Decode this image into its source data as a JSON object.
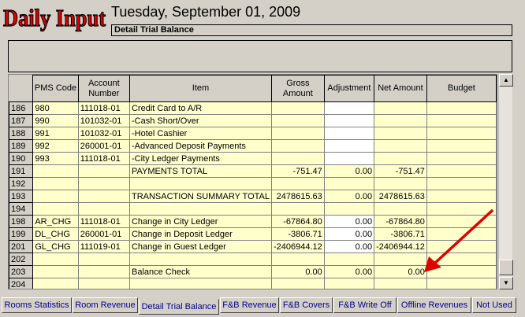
{
  "header": {
    "logo_text": "Daily Input",
    "date": "Tuesday, September 01, 2009",
    "subtitle": "Detail Trial Balance"
  },
  "colors": {
    "logo": "#e00000",
    "grid_row": "#ffffcc",
    "tab_text": "#00008b",
    "arrow": "#e00000"
  },
  "grid": {
    "columns": [
      "PMS Code",
      "Account Number",
      "Item",
      "Gross Amount",
      "Adjustment",
      "Net Amount",
      "Budget"
    ],
    "rows": [
      {
        "num": "186",
        "pms": "980",
        "acct": "111018-01",
        "item": "Credit Card to A/R",
        "gross": "",
        "adj": "",
        "net": "",
        "budget": ""
      },
      {
        "num": "187",
        "pms": "990",
        "acct": "101032-01",
        "item": "-Cash Short/Over",
        "gross": "",
        "adj": "",
        "net": "",
        "budget": ""
      },
      {
        "num": "188",
        "pms": "991",
        "acct": "101032-01",
        "item": "-Hotel Cashier",
        "gross": "",
        "adj": "",
        "net": "",
        "budget": ""
      },
      {
        "num": "189",
        "pms": "992",
        "acct": "260001-01",
        "item": "-Advanced Deposit Payments",
        "gross": "",
        "adj": "",
        "net": "",
        "budget": ""
      },
      {
        "num": "190",
        "pms": "993",
        "acct": "111018-01",
        "item": "-City Ledger Payments",
        "gross": "",
        "adj": "",
        "net": "",
        "budget": ""
      },
      {
        "num": "191",
        "pms": "",
        "acct": "",
        "item": "PAYMENTS TOTAL",
        "gross": "-751.47",
        "adj": "0.00",
        "net": "-751.47",
        "budget": ""
      },
      {
        "num": "192",
        "pms": "",
        "acct": "",
        "item": "",
        "gross": "",
        "adj": "",
        "net": "",
        "budget": ""
      },
      {
        "num": "193",
        "pms": "",
        "acct": "",
        "item": "TRANSACTION SUMMARY TOTAL",
        "gross": "2478615.63",
        "adj": "0.00",
        "net": "2478615.63",
        "budget": ""
      },
      {
        "num": "194",
        "pms": "",
        "acct": "",
        "item": "",
        "gross": "",
        "adj": "",
        "net": "",
        "budget": ""
      },
      {
        "num": "198",
        "pms": "AR_CHG",
        "acct": "111018-01",
        "item": "Change in City Ledger",
        "gross": "-67864.80",
        "adj": "0.00",
        "net": "-67864.80",
        "budget": ""
      },
      {
        "num": "199",
        "pms": "DL_CHG",
        "acct": "260001-01",
        "item": "Change in Deposit Ledger",
        "gross": "-3806.71",
        "adj": "0.00",
        "net": "-3806.71",
        "budget": ""
      },
      {
        "num": "201",
        "pms": "GL_CHG",
        "acct": "111019-01",
        "item": "Change in Guest Ledger",
        "gross": "-2406944.12",
        "adj": "0.00",
        "net": "-2406944.12",
        "budget": ""
      },
      {
        "num": "202",
        "pms": "",
        "acct": "",
        "item": "",
        "gross": "",
        "adj": "",
        "net": "",
        "budget": ""
      },
      {
        "num": "203",
        "pms": "",
        "acct": "",
        "item": "Balance Check",
        "gross": "0.00",
        "adj": "0.00",
        "net": "0.00",
        "budget": ""
      },
      {
        "num": "204",
        "pms": "",
        "acct": "",
        "item": "",
        "gross": "",
        "adj": "",
        "net": "",
        "budget": ""
      }
    ]
  },
  "tabs": [
    {
      "label": "Rooms Statistics",
      "active": false
    },
    {
      "label": "Room Revenue",
      "active": false
    },
    {
      "label": "Detail Trial Balance",
      "active": true
    },
    {
      "label": "F&B Revenue",
      "active": false
    },
    {
      "label": "F&B Covers",
      "active": false
    },
    {
      "label": "F&B Write Off",
      "active": false
    },
    {
      "label": "Offline Revenues",
      "active": false
    },
    {
      "label": "Not Used",
      "active": false
    }
  ],
  "scrollbar": {
    "up_icon": "triangle-up",
    "down_icon": "triangle-down"
  }
}
